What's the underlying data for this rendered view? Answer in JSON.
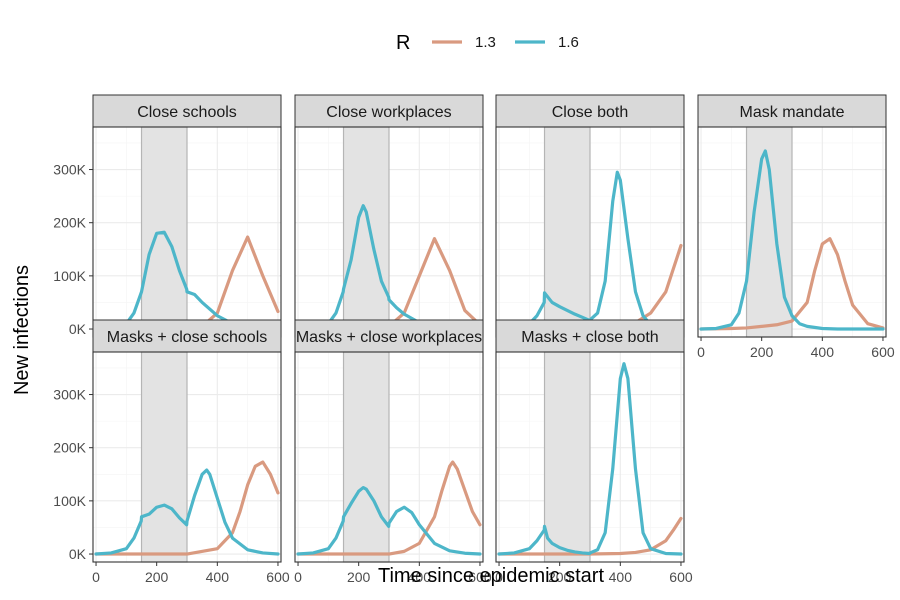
{
  "chart_data": {
    "type": "line",
    "xlabel": "Time since epidemic start",
    "ylabel": "New infections",
    "xlim": [
      -10,
      610
    ],
    "ylim": [
      -15000,
      380000
    ],
    "x_ticks": [
      0,
      200,
      400,
      600
    ],
    "y_ticks": [
      0,
      100000,
      200000,
      300000
    ],
    "y_tick_labels": [
      "0K",
      "100K",
      "200K",
      "300K"
    ],
    "grid": true,
    "legend": {
      "title": "R",
      "placement": "top",
      "entries": [
        {
          "label": "1.3",
          "color": "#d99a80"
        },
        {
          "label": "1.6",
          "color": "#4db6c9"
        }
      ]
    },
    "intervention_window": [
      150,
      300
    ],
    "panels": [
      {
        "title": "Close schools",
        "series": [
          {
            "name": "1.3",
            "x": [
              0,
              100,
              150,
              200,
              250,
              300,
              350,
              400,
              450,
              500,
              550,
              600
            ],
            "y": [
              0,
              0,
              0,
              0,
              0,
              0,
              5000,
              30000,
              110000,
              173000,
              100000,
              33000
            ]
          },
          {
            "name": "1.6",
            "x": [
              0,
              50,
              100,
              125,
              150,
              175,
              200,
              225,
              250,
              275,
              299,
              300,
              325,
              350,
              400,
              450,
              500,
              550,
              600
            ],
            "y": [
              0,
              2000,
              10000,
              30000,
              70000,
              140000,
              180000,
              182000,
              155000,
              110000,
              75000,
              70000,
              65000,
              50000,
              25000,
              10000,
              4000,
              1000,
              0
            ]
          }
        ]
      },
      {
        "title": "Close workplaces",
        "series": [
          {
            "name": "1.3",
            "x": [
              0,
              100,
              150,
              200,
              250,
              300,
              350,
              400,
              450,
              500,
              550,
              600
            ],
            "y": [
              0,
              0,
              0,
              0,
              0,
              5000,
              30000,
              100000,
              170000,
              110000,
              35000,
              8000
            ]
          },
          {
            "name": "1.6",
            "x": [
              0,
              50,
              100,
              125,
              149,
              150,
              175,
              200,
              215,
              225,
              250,
              275,
              299,
              300,
              325,
              350,
              400,
              450,
              500,
              550,
              600
            ],
            "y": [
              0,
              2000,
              10000,
              30000,
              70000,
              75000,
              130000,
              210000,
              232000,
              220000,
              150000,
              90000,
              60000,
              55000,
              40000,
              28000,
              12000,
              5000,
              2000,
              500,
              0
            ]
          }
        ]
      },
      {
        "title": "Close both",
        "series": [
          {
            "name": "1.3",
            "x": [
              0,
              100,
              200,
              300,
              400,
              450,
              500,
              550,
              600
            ],
            "y": [
              0,
              0,
              0,
              0,
              5000,
              12000,
              30000,
              70000,
              157000
            ]
          },
          {
            "name": "1.6",
            "x": [
              0,
              50,
              100,
              125,
              149,
              150,
              175,
              200,
              225,
              250,
              275,
              299,
              300,
              325,
              350,
              375,
              390,
              400,
              425,
              450,
              475,
              500,
              525,
              550,
              600
            ],
            "y": [
              0,
              2000,
              10000,
              25000,
              50000,
              68000,
              50000,
              42000,
              35000,
              28000,
              22000,
              16000,
              17000,
              30000,
              90000,
              240000,
              295000,
              280000,
              170000,
              70000,
              25000,
              8000,
              3000,
              1000,
              0
            ]
          }
        ]
      },
      {
        "title": "Mask mandate",
        "series": [
          {
            "name": "1.3",
            "x": [
              0,
              100,
              150,
              200,
              250,
              300,
              350,
              375,
              400,
              425,
              450,
              475,
              500,
              550,
              600
            ],
            "y": [
              0,
              1000,
              2000,
              5000,
              8000,
              15000,
              50000,
              110000,
              160000,
              170000,
              140000,
              90000,
              45000,
              10000,
              2000
            ]
          },
          {
            "name": "1.6",
            "x": [
              0,
              50,
              100,
              125,
              150,
              175,
              200,
              212,
              225,
              250,
              275,
              300,
              325,
              350,
              400,
              450,
              500,
              550,
              600
            ],
            "y": [
              0,
              1000,
              8000,
              30000,
              90000,
              220000,
              320000,
              335000,
              300000,
              160000,
              60000,
              25000,
              10000,
              5000,
              1000,
              0,
              0,
              0,
              0
            ]
          }
        ]
      },
      {
        "title": "Masks + close schools",
        "series": [
          {
            "name": "1.3",
            "x": [
              0,
              100,
              200,
              300,
              400,
              450,
              475,
              500,
              525,
              550,
              575,
              600
            ],
            "y": [
              0,
              0,
              0,
              0,
              10000,
              40000,
              80000,
              130000,
              165000,
              173000,
              150000,
              115000
            ]
          },
          {
            "name": "1.6",
            "x": [
              0,
              50,
              100,
              125,
              149,
              150,
              175,
              200,
              225,
              250,
              275,
              299,
              300,
              325,
              350,
              365,
              375,
              400,
              425,
              450,
              500,
              550,
              600
            ],
            "y": [
              0,
              2000,
              10000,
              30000,
              62000,
              70000,
              75000,
              88000,
              92000,
              85000,
              68000,
              55000,
              62000,
              110000,
              150000,
              158000,
              150000,
              105000,
              60000,
              30000,
              8000,
              2000,
              0
            ]
          }
        ]
      },
      {
        "title": "Masks + close workplaces",
        "series": [
          {
            "name": "1.3",
            "x": [
              0,
              100,
              200,
              300,
              350,
              400,
              450,
              475,
              500,
              510,
              525,
              550,
              575,
              600
            ],
            "y": [
              0,
              0,
              0,
              0,
              5000,
              20000,
              70000,
              120000,
              165000,
              173000,
              160000,
              120000,
              80000,
              55000
            ]
          },
          {
            "name": "1.6",
            "x": [
              0,
              50,
              100,
              125,
              149,
              150,
              175,
              200,
              215,
              225,
              250,
              275,
              299,
              300,
              325,
              350,
              375,
              400,
              450,
              500,
              550,
              600
            ],
            "y": [
              0,
              2000,
              10000,
              30000,
              62000,
              70000,
              95000,
              118000,
              125000,
              122000,
              100000,
              70000,
              52000,
              58000,
              80000,
              88000,
              78000,
              55000,
              20000,
              6000,
              1500,
              0
            ]
          }
        ]
      },
      {
        "title": "Masks + close both",
        "series": [
          {
            "name": "1.3",
            "x": [
              0,
              100,
              200,
              300,
              400,
              450,
              500,
              550,
              575,
              600
            ],
            "y": [
              0,
              0,
              0,
              0,
              1000,
              3000,
              8000,
              25000,
              45000,
              67000
            ]
          },
          {
            "name": "1.6",
            "x": [
              0,
              50,
              100,
              125,
              149,
              150,
              160,
              175,
              200,
              225,
              250,
              275,
              299,
              300,
              325,
              350,
              375,
              400,
              412,
              425,
              450,
              475,
              500,
              550,
              600
            ],
            "y": [
              0,
              2000,
              10000,
              25000,
              45000,
              52000,
              30000,
              20000,
              12000,
              7000,
              4000,
              2000,
              1000,
              2000,
              8000,
              40000,
              160000,
              330000,
              358000,
              330000,
              160000,
              40000,
              10000,
              1000,
              0
            ]
          }
        ]
      }
    ]
  }
}
